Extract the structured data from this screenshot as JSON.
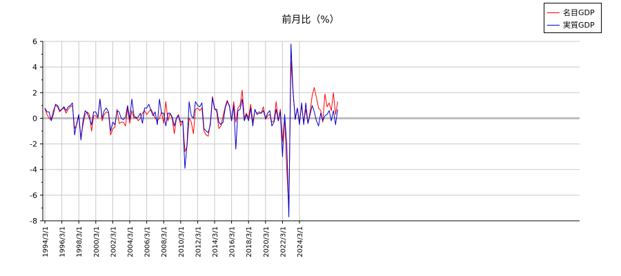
{
  "chart_data": {
    "type": "line",
    "title": "前月比（%）",
    "ylim": [
      -8,
      6
    ],
    "yticks": [
      "6",
      "4",
      "2",
      "0",
      "-2",
      "-4",
      "-6",
      "-8"
    ],
    "xticks": [
      "1994/3/1",
      "1996/3/1",
      "1998/3/1",
      "2000/3/1",
      "2002/3/1",
      "2004/3/1",
      "2006/3/1",
      "2008/3/1",
      "2010/3/1",
      "2012/3/1",
      "2014/3/1",
      "2016/3/1",
      "2018/3/1",
      "2020/3/1",
      "2022/3/1",
      "2024/3/1"
    ],
    "x_start": "1994/3/1",
    "x_freq": "quarterly",
    "grid": true,
    "legend_position": "top-right",
    "series": [
      {
        "name": "名目GDP",
        "color": "#ff0000",
        "values": [
          0.8,
          0.3,
          0.0,
          -0.1,
          0.6,
          1.0,
          0.9,
          0.5,
          0.7,
          0.8,
          0.4,
          0.7,
          0.9,
          1.0,
          -0.8,
          -0.5,
          0.2,
          -1.5,
          -0.5,
          0.3,
          0.5,
          0.3,
          -1.0,
          0.2,
          0.2,
          0.0,
          1.5,
          -0.2,
          0.3,
          0.5,
          0.4,
          -1.3,
          -0.8,
          -0.7,
          0.7,
          -0.4,
          -0.3,
          -0.3,
          -0.6,
          0.8,
          -0.4,
          0.6,
          0.0,
          0.1,
          -0.2,
          0.0,
          0.4,
          0.6,
          0.3,
          0.5,
          0.7,
          0.4,
          0.0,
          -0.2,
          0.0,
          0.5,
          -0.4,
          1.3,
          -0.2,
          0.4,
          0.0,
          -1.2,
          0.0,
          0.3,
          -0.6,
          -0.2,
          -2.6,
          -2.2,
          0.0,
          -0.3,
          -1.2,
          0.7,
          0.8,
          0.6,
          0.8,
          -1.0,
          -1.3,
          -1.4,
          -0.3,
          1.7,
          0.8,
          0.5,
          -0.8,
          -0.6,
          0.2,
          0.9,
          1.4,
          0.9,
          -0.2,
          1.3,
          -0.3,
          0.8,
          1.0,
          2.2,
          0.0,
          0.4,
          0.0,
          1.1,
          -0.3,
          0.6,
          0.4,
          0.5,
          0.4,
          0.9,
          -0.1,
          0.2,
          0.3,
          -0.3,
          -0.2,
          1.3,
          -0.2,
          0.7,
          -1.8,
          0.0,
          -4.0,
          -7.0,
          4.5,
          2.0,
          0.0,
          0.8,
          -0.3,
          1.0,
          -0.3,
          0.7,
          -0.4,
          0.5,
          1.8,
          2.4,
          1.6,
          0.8,
          0.6,
          -0.3,
          1.9,
          0.9,
          1.2,
          0.6,
          2.0,
          0.3,
          1.3
        ]
      },
      {
        "name": "実質GDP",
        "color": "#0000cc",
        "values": [
          0.8,
          0.5,
          0.5,
          -0.2,
          0.3,
          1.1,
          1.0,
          0.6,
          0.7,
          0.9,
          0.6,
          0.9,
          1.0,
          1.2,
          -1.3,
          -0.4,
          0.3,
          -1.7,
          -0.2,
          0.6,
          0.4,
          0.0,
          -0.5,
          0.5,
          0.5,
          0.1,
          1.5,
          0.0,
          0.6,
          0.8,
          0.5,
          -1.0,
          -0.3,
          -0.5,
          0.6,
          0.5,
          0.0,
          -0.1,
          0.1,
          1.0,
          -0.1,
          1.5,
          0.2,
          0.0,
          0.1,
          0.4,
          -0.4,
          0.8,
          0.8,
          1.1,
          0.6,
          0.2,
          0.5,
          -0.5,
          1.5,
          0.4,
          0.4,
          -0.6,
          0.4,
          0.4,
          0.1,
          -0.6,
          0.0,
          0.2,
          -0.3,
          -0.2,
          -3.9,
          -2.1,
          1.3,
          0.2,
          0.0,
          1.3,
          1.0,
          0.9,
          1.2,
          -0.8,
          -1.0,
          -1.1,
          -0.5,
          1.6,
          0.7,
          0.7,
          -0.3,
          -0.5,
          -0.3,
          0.8,
          1.3,
          1.0,
          -0.2,
          1.0,
          -2.4,
          0.6,
          0.7,
          1.5,
          -0.2,
          0.3,
          -0.2,
          0.8,
          -0.6,
          0.7,
          0.3,
          0.4,
          0.4,
          0.6,
          0.0,
          0.4,
          0.6,
          -0.6,
          -0.3,
          0.7,
          -0.2,
          0.5,
          -3.0,
          0.3,
          -2.0,
          -7.7,
          5.8,
          2.0,
          -0.1,
          0.8,
          -0.5,
          1.2,
          -0.5,
          1.2,
          -0.4,
          0.3,
          1.0,
          0.5,
          -0.2,
          -0.6,
          0.4,
          -0.2,
          0.2,
          0.3,
          0.6,
          -0.2,
          0.6,
          -0.5,
          0.7
        ]
      }
    ]
  }
}
